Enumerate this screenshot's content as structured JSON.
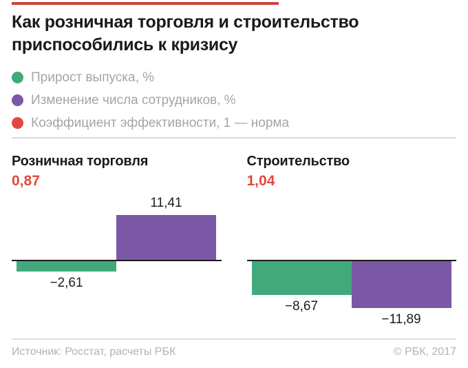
{
  "header": {
    "title_line1": "Как розничная торговля и строительство",
    "title_line2": "приспособились к кризису"
  },
  "colors": {
    "green": "#41a97c",
    "purple": "#7a58a6",
    "red": "#e2483d",
    "accent_line": "#d13f35",
    "text_dark": "#1a1a1a",
    "text_gray": "#a5a5a5",
    "divider": "#d8d8d8"
  },
  "legend": [
    {
      "label": "Прирост выпуска, %",
      "color": "#41a97c"
    },
    {
      "label": "Изменение числа сотрудников, %",
      "color": "#7a58a6"
    },
    {
      "label": "Коэффициент эффективности, 1 — норма",
      "color": "#e2483d"
    }
  ],
  "chart_data": [
    {
      "type": "bar",
      "title": "Розничная торговля",
      "coefficient": {
        "display": "0,87",
        "value": 0.87,
        "meaning": "Коэффициент эффективности, 1 — норма"
      },
      "series": [
        {
          "name": "Прирост выпуска, %",
          "value": -2.61,
          "label": "−2,61",
          "color": "#41a97c"
        },
        {
          "name": "Изменение числа сотрудников, %",
          "value": 11.41,
          "label": "11,41",
          "color": "#7a58a6"
        }
      ],
      "baseline": 0,
      "grid": false,
      "value_labels": true
    },
    {
      "type": "bar",
      "title": "Строительство",
      "coefficient": {
        "display": "1,04",
        "value": 1.04,
        "meaning": "Коэффициент эффективности, 1 — норма"
      },
      "series": [
        {
          "name": "Прирост выпуска, %",
          "value": -8.67,
          "label": "−8,67",
          "color": "#41a97c"
        },
        {
          "name": "Изменение числа сотрудников, %",
          "value": -11.89,
          "label": "−11,89",
          "color": "#7a58a6"
        }
      ],
      "baseline": 0,
      "grid": false,
      "value_labels": true
    }
  ],
  "footer": {
    "source": "Источник: Росстат, расчеты РБК",
    "copyright": "© РБК, 2017"
  }
}
